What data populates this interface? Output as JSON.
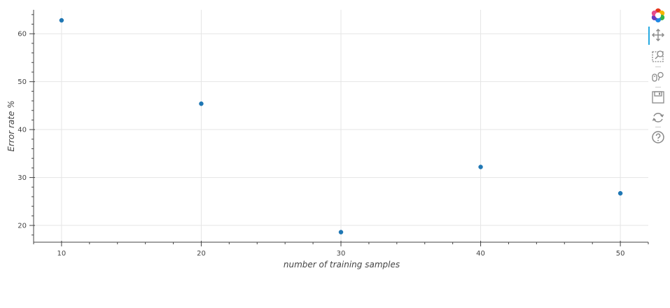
{
  "chart_data": {
    "type": "scatter",
    "title": "",
    "xlabel": "number of training samples",
    "ylabel": "Error rate %",
    "xlim": [
      8,
      52
    ],
    "ylim": [
      16.5,
      65
    ],
    "x_ticks": [
      10,
      20,
      30,
      40,
      50
    ],
    "y_ticks": [
      20,
      30,
      40,
      50,
      60
    ],
    "grid": true,
    "point_color": "#1f77b4",
    "points": [
      {
        "x": 10,
        "y": 62.8
      },
      {
        "x": 20,
        "y": 45.4
      },
      {
        "x": 30,
        "y": 18.6
      },
      {
        "x": 40,
        "y": 32.2
      },
      {
        "x": 50,
        "y": 26.7
      }
    ]
  },
  "toolbar": {
    "tools": [
      {
        "name": "bokeh-logo-icon",
        "interactable": false
      },
      {
        "name": "pan-icon",
        "interactable": true,
        "active": true
      },
      {
        "name": "box-zoom-icon",
        "interactable": true,
        "active": false
      },
      {
        "name": "wheel-zoom-icon",
        "interactable": true,
        "active": false
      },
      {
        "name": "save-icon",
        "interactable": true,
        "active": false
      },
      {
        "name": "reset-icon",
        "interactable": true,
        "active": false
      },
      {
        "name": "help-icon",
        "interactable": true,
        "active": false
      }
    ],
    "accent_color": "#26aae1"
  }
}
